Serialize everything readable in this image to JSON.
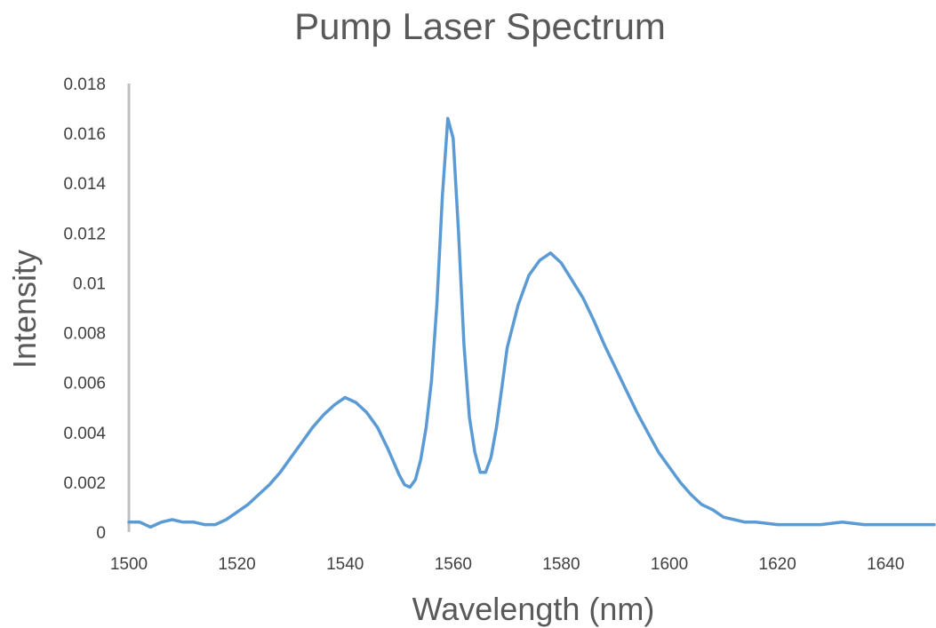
{
  "chart_data": {
    "type": "line",
    "title": "Pump Laser Spectrum",
    "xlabel": "Wavelength (nm)",
    "ylabel": "Intensity",
    "xlim": [
      1500,
      1649
    ],
    "ylim": [
      0,
      0.018
    ],
    "x_ticks": [
      "1500",
      "1520",
      "1540",
      "1560",
      "1580",
      "1600",
      "1620",
      "1640"
    ],
    "y_ticks": [
      "0",
      "0.002",
      "0.004",
      "0.006",
      "0.008",
      "0.01",
      "0.012",
      "0.014",
      "0.016",
      "0.018"
    ],
    "grid": false,
    "legend": "none",
    "colors": {
      "series": "#5b9bd5",
      "axis": "#bfbfbf",
      "text": "#595959"
    },
    "series": [
      {
        "x": [
          1500,
          1502,
          1504,
          1506,
          1508,
          1510,
          1512,
          1514,
          1516,
          1518,
          1520,
          1522,
          1524,
          1526,
          1528,
          1530,
          1532,
          1534,
          1536,
          1538,
          1540,
          1542,
          1544,
          1546,
          1548,
          1550,
          1551,
          1552,
          1553,
          1554,
          1555,
          1556,
          1557,
          1558,
          1559,
          1560,
          1561,
          1562,
          1563,
          1564,
          1565,
          1566,
          1567,
          1568,
          1569,
          1570,
          1572,
          1574,
          1576,
          1578,
          1580,
          1582,
          1584,
          1586,
          1588,
          1590,
          1592,
          1594,
          1596,
          1598,
          1600,
          1602,
          1604,
          1606,
          1608,
          1610,
          1612,
          1614,
          1616,
          1620,
          1624,
          1628,
          1632,
          1636,
          1640,
          1644,
          1649
        ],
        "y": [
          0.0004,
          0.0004,
          0.0002,
          0.0004,
          0.0005,
          0.0004,
          0.0004,
          0.0003,
          0.0003,
          0.0005,
          0.0008,
          0.0011,
          0.0015,
          0.0019,
          0.0024,
          0.003,
          0.0036,
          0.0042,
          0.0047,
          0.0051,
          0.0054,
          0.0052,
          0.0048,
          0.0042,
          0.0033,
          0.0023,
          0.0019,
          0.0018,
          0.0021,
          0.0029,
          0.0042,
          0.0061,
          0.0092,
          0.0135,
          0.0166,
          0.0158,
          0.012,
          0.0075,
          0.0046,
          0.0032,
          0.0024,
          0.0024,
          0.003,
          0.0042,
          0.0058,
          0.0074,
          0.0091,
          0.0103,
          0.0109,
          0.0112,
          0.0108,
          0.0101,
          0.0094,
          0.0085,
          0.0075,
          0.0066,
          0.0057,
          0.0048,
          0.004,
          0.0032,
          0.0026,
          0.002,
          0.0015,
          0.0011,
          0.0009,
          0.0006,
          0.0005,
          0.0004,
          0.0004,
          0.0003,
          0.0003,
          0.0003,
          0.0004,
          0.0003,
          0.0003,
          0.0003,
          0.0003
        ]
      }
    ]
  }
}
